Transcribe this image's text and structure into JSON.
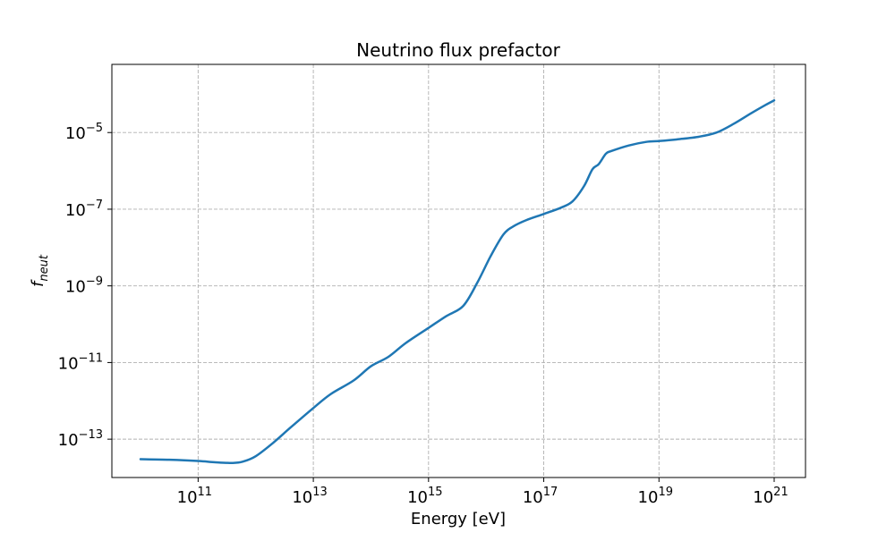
{
  "chart_data": {
    "type": "line",
    "title": "Neutrino flux prefactor",
    "xlabel": "Energy [eV]",
    "ylabel_base": "f",
    "ylabel_sub": "neut",
    "xscale": "log",
    "yscale": "log",
    "xlim": [
      10000000000.0,
      1e+21
    ],
    "ylim": [
      1e-14,
      0.0006
    ],
    "grid": true,
    "line_color": "#1f77b4",
    "x_ticks": [
      {
        "base": "10",
        "exp": "11",
        "value": 100000000000.0
      },
      {
        "base": "10",
        "exp": "13",
        "value": 10000000000000.0
      },
      {
        "base": "10",
        "exp": "15",
        "value": 1000000000000000.0
      },
      {
        "base": "10",
        "exp": "17",
        "value": 1e+17
      },
      {
        "base": "10",
        "exp": "19",
        "value": 1e+19
      },
      {
        "base": "10",
        "exp": "21",
        "value": 1e+21
      }
    ],
    "y_ticks": [
      {
        "base": "10",
        "exp": "−13",
        "value": 1e-13
      },
      {
        "base": "10",
        "exp": "−11",
        "value": 1e-11
      },
      {
        "base": "10",
        "exp": "−9",
        "value": 1e-09
      },
      {
        "base": "10",
        "exp": "−7",
        "value": 1e-07
      },
      {
        "base": "10",
        "exp": "−5",
        "value": 1e-05
      }
    ],
    "series": [
      {
        "x": [
          10000000000.0,
          31600000000.0,
          100000000000.0,
          200000000000.0,
          400000000000.0,
          600000000000.0,
          1000000000000.0,
          2000000000000.0,
          4000000000000.0,
          10000000000000.0,
          20000000000000.0,
          50000000000000.0,
          100000000000000.0,
          200000000000000.0,
          400000000000000.0,
          1000000000000000.0,
          2000000000000000.0,
          4000000000000000.0,
          7000000000000000.0,
          1.2e+16,
          2e+16,
          3e+16,
          5e+16,
          1e+17,
          2e+17,
          3.16e+17,
          5e+17,
          7e+17,
          9e+17,
          1.2e+18,
          1.5e+18,
          3e+18,
          6e+18,
          1e+19,
          2e+19,
          5e+19,
          1e+20,
          2e+20,
          4e+20,
          7e+20,
          1e+21
        ],
        "y": [
          3e-14,
          2.9e-14,
          2.7e-14,
          2.5e-14,
          2.4e-14,
          2.6e-14,
          3.6e-14,
          8e-14,
          2e-13,
          6.5e-13,
          1.5e-12,
          3.4e-12,
          8e-12,
          1.4e-11,
          3.2e-11,
          8e-11,
          1.6e-10,
          3e-10,
          1.2e-09,
          6e-09,
          2.2e-08,
          3.6e-08,
          5.2e-08,
          7.5e-08,
          1.1e-07,
          1.6e-07,
          4e-07,
          1.1e-06,
          1.5e-06,
          2.8e-06,
          3.3e-06,
          4.6e-06,
          5.7e-06,
          6e-06,
          6.6e-06,
          7.8e-06,
          1e-05,
          1.7e-05,
          3.2e-05,
          5.2e-05,
          6.9e-05
        ]
      }
    ]
  }
}
